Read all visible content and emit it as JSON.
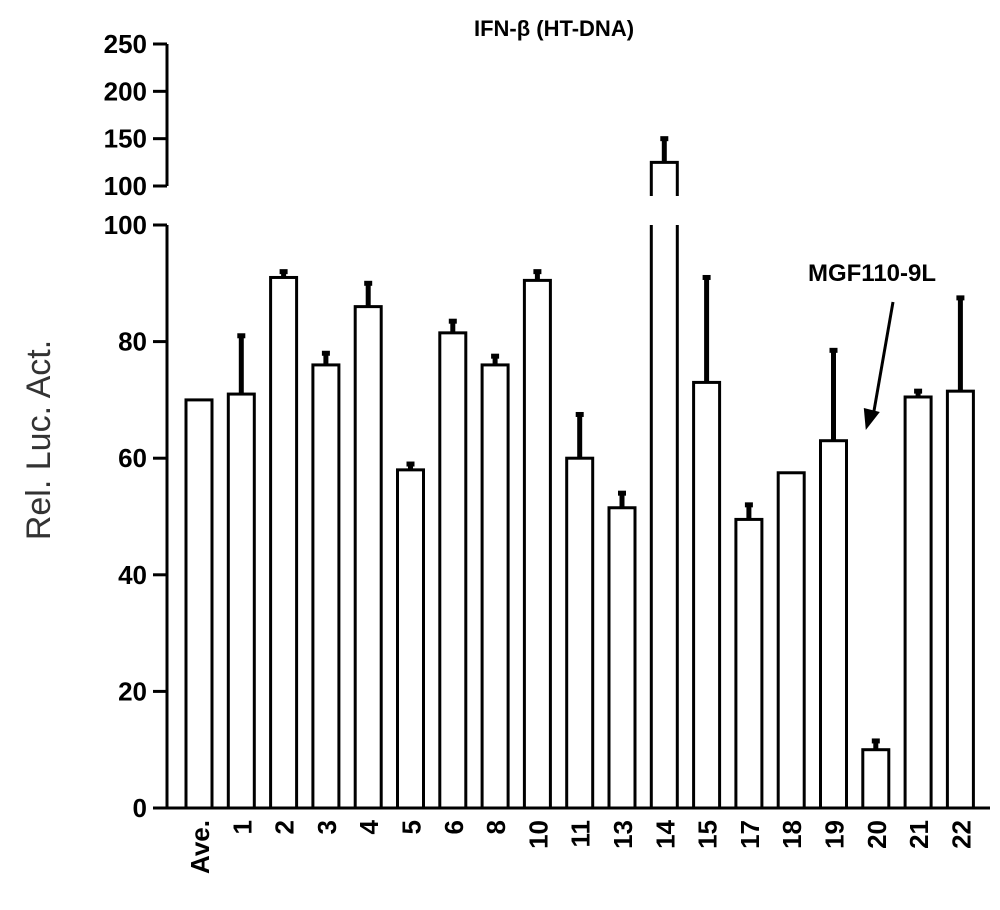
{
  "chart_data": {
    "type": "bar",
    "title": "IFN-β (HT-DNA)",
    "ylabel": "Rel. Luc. Act.",
    "xlabel": "",
    "y_axis": {
      "broken": true,
      "lower_segment": {
        "range": [
          0,
          100
        ],
        "ticks": [
          0,
          20,
          40,
          60,
          80,
          100
        ]
      },
      "upper_segment": {
        "range": [
          100,
          250
        ],
        "ticks": [
          100,
          150,
          200,
          250
        ]
      }
    },
    "categories": [
      "Ave.",
      "1",
      "2",
      "3",
      "4",
      "5",
      "6",
      "8",
      "10",
      "11",
      "13",
      "14",
      "15",
      "17",
      "18",
      "19",
      "20",
      "21",
      "22"
    ],
    "values": [
      70,
      71,
      91,
      76,
      86,
      58,
      81.5,
      76,
      90.5,
      60,
      51.5,
      125,
      73,
      49.5,
      57.5,
      63,
      10,
      70.5,
      71.5
    ],
    "errors": [
      0,
      10,
      1,
      2,
      4,
      1,
      2,
      1.5,
      1.5,
      7.5,
      2.5,
      25,
      18,
      2.5,
      0,
      15.5,
      1.5,
      1,
      16
    ],
    "annotations": [
      {
        "text": "MGF110-9L",
        "target_category": "20"
      }
    ]
  }
}
